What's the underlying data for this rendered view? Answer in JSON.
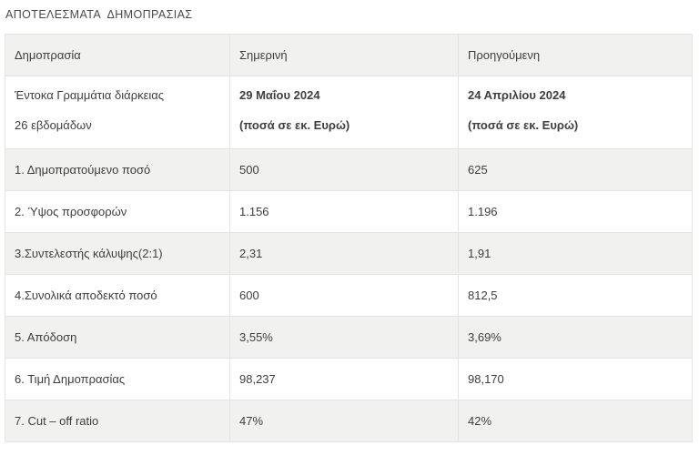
{
  "page": {
    "title": "ΑΠΟΤΕΛΕΣΜΑΤΑ  ΔΗΜΟΠΡΑΣΙΑΣ"
  },
  "table": {
    "columns": {
      "auction": "Δημοπρασία",
      "current": "Σημερινή",
      "previous": "Προηγούμενη"
    },
    "subheader": {
      "security_line1": "Έντοκα Γραμμάτια διάρκειας",
      "security_line2": "26 εβδομάδων",
      "current_line1": "29 Μαΐου 2024",
      "current_line2": "(ποσά σε εκ. Ευρώ)",
      "previous_line1": "24 Απριλίου 2024",
      "previous_line2": "(ποσά σε εκ. Ευρώ)"
    },
    "rows": [
      {
        "label": "1. Δημοπρατούμενο ποσό",
        "current": "500",
        "previous": "625"
      },
      {
        "label": "2. Ύψος προσφορών",
        "current": "1.156",
        "previous": "1.196"
      },
      {
        "label": "3.Συντελεστής κάλυψης(2:1)",
        "current": "2,31",
        "previous": "1,91"
      },
      {
        "label": "4.Συνολικά αποδεκτό ποσό",
        "current": "600",
        "previous": "812,5"
      },
      {
        "label": "5. Απόδοση",
        "current": "3,55%",
        "previous": "3,69%"
      },
      {
        "label": "6. Τιμή Δημοπρασίας",
        "current": "98,237",
        "previous": "98,170"
      },
      {
        "label": "7. Cut – off ratio",
        "current": "47%",
        "previous": "42%"
      }
    ],
    "colors": {
      "stripe_background": "#f1f1f0",
      "border": "#e4e4e2",
      "text": "#3e3e3e"
    }
  },
  "chart_data": {
    "type": "table",
    "title": "ΑΠΟΤΕΛΕΣΜΑΤΑ ΔΗΜΟΠΡΑΣΙΑΣ",
    "columns": [
      "Δημοπρασία",
      "Σημερινή — 29 Μαΐου 2024 (ποσά σε εκ. Ευρώ)",
      "Προηγούμενη — 24 Απριλίου 2024 (ποσά σε εκ. Ευρώ)"
    ],
    "rows": [
      [
        "Έντοκα Γραμμάτια διάρκειας 26 εβδομάδων",
        "",
        ""
      ],
      [
        "1. Δημοπρατούμενο ποσό",
        "500",
        "625"
      ],
      [
        "2. Ύψος προσφορών",
        "1.156",
        "1.196"
      ],
      [
        "3.Συντελεστής κάλυψης(2:1)",
        "2,31",
        "1,91"
      ],
      [
        "4.Συνολικά αποδεκτό ποσό",
        "600",
        "812,5"
      ],
      [
        "5. Απόδοση",
        "3,55%",
        "3,69%"
      ],
      [
        "6. Τιμή Δημοπρασίας",
        "98,237",
        "98,170"
      ],
      [
        "7. Cut – off ratio",
        "47%",
        "42%"
      ]
    ]
  }
}
